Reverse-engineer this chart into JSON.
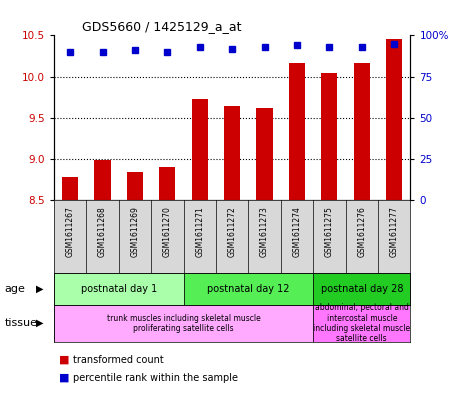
{
  "title": "GDS5660 / 1425129_a_at",
  "samples": [
    "GSM1611267",
    "GSM1611268",
    "GSM1611269",
    "GSM1611270",
    "GSM1611271",
    "GSM1611272",
    "GSM1611273",
    "GSM1611274",
    "GSM1611275",
    "GSM1611276",
    "GSM1611277"
  ],
  "transformed_count": [
    8.78,
    8.99,
    8.84,
    8.9,
    9.73,
    9.65,
    9.62,
    10.17,
    10.04,
    10.17,
    10.46
  ],
  "percentile_rank": [
    90,
    90,
    91,
    90,
    93,
    92,
    93,
    94,
    93,
    93,
    95
  ],
  "ylim_left": [
    8.5,
    10.5
  ],
  "ylim_right": [
    0,
    100
  ],
  "yticks_left": [
    8.5,
    9.0,
    9.5,
    10.0,
    10.5
  ],
  "yticks_right": [
    0,
    25,
    50,
    75,
    100
  ],
  "ytick_labels_right": [
    "0",
    "25",
    "50",
    "75",
    "100%"
  ],
  "bar_color": "#cc0000",
  "dot_color": "#0000cc",
  "age_groups": [
    {
      "label": "postnatal day 1",
      "start": 0,
      "end": 3,
      "color": "#aaffaa"
    },
    {
      "label": "postnatal day 12",
      "start": 4,
      "end": 7,
      "color": "#55ee55"
    },
    {
      "label": "postnatal day 28",
      "start": 8,
      "end": 10,
      "color": "#22cc22"
    }
  ],
  "tissue_groups": [
    {
      "label": "trunk muscles including skeletal muscle\nproliferating satellite cells",
      "start": 0,
      "end": 7,
      "color": "#ffaaff"
    },
    {
      "label": "abdominal, pectoral and\nintercostal muscle\nincluding skeletal muscle\nsatellite cells",
      "start": 8,
      "end": 10,
      "color": "#ff77ff"
    }
  ],
  "age_label": "age",
  "tissue_label": "tissue",
  "legend_bar_label": "transformed count",
  "legend_dot_label": "percentile rank within the sample",
  "bg_color": "#ffffff",
  "plot_bg_color": "#ffffff",
  "sample_bg_color": "#d8d8d8"
}
